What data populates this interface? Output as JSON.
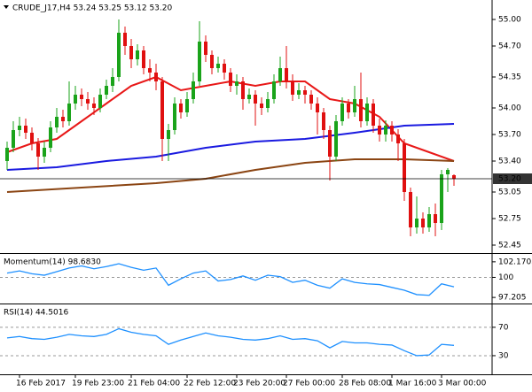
{
  "chart_data": [
    {
      "type": "candlestick",
      "title": "CRUDE_J17,H4  53.24 53.25 53.12 53.20",
      "up_color": "#1aa31a",
      "down_color": "#e01010",
      "open": [
        53.4,
        53.55,
        53.75,
        53.8,
        53.72,
        53.6,
        53.45,
        53.55,
        53.78,
        53.9,
        53.85,
        54.05,
        54.15,
        54.1,
        54.05,
        54.0,
        54.15,
        54.25,
        54.35,
        54.85,
        54.7,
        54.55,
        54.65,
        54.45,
        54.4,
        54.3,
        53.65,
        53.75,
        54.05,
        53.95,
        54.1,
        54.3,
        54.75,
        54.6,
        54.45,
        54.5,
        54.4,
        54.25,
        54.3,
        54.1,
        54.15,
        54.05,
        54.0,
        54.1,
        54.3,
        54.45,
        54.3,
        54.15,
        54.2,
        54.15,
        54.05,
        53.95,
        53.75,
        53.45,
        53.85,
        54.05,
        53.95,
        54.1,
        53.85,
        54.05,
        53.8,
        53.7,
        53.8,
        53.7,
        53.6,
        53.05,
        52.65,
        52.75,
        52.65,
        52.8,
        52.7,
        53.25,
        53.24
      ],
      "high": [
        53.62,
        53.85,
        53.9,
        53.88,
        53.78,
        53.66,
        53.62,
        53.85,
        54.0,
        53.98,
        54.3,
        54.25,
        54.22,
        54.18,
        54.12,
        54.22,
        54.32,
        54.45,
        55.0,
        54.92,
        54.78,
        54.72,
        54.7,
        54.55,
        54.5,
        54.35,
        53.82,
        54.12,
        54.1,
        54.18,
        54.4,
        54.98,
        54.82,
        54.65,
        54.58,
        54.55,
        54.45,
        54.38,
        54.35,
        54.22,
        54.2,
        54.12,
        54.18,
        54.38,
        54.58,
        54.7,
        54.38,
        54.28,
        54.25,
        54.2,
        54.12,
        54.0,
        53.8,
        53.92,
        54.12,
        54.1,
        54.25,
        54.4,
        54.12,
        54.1,
        53.88,
        53.86,
        53.85,
        53.76,
        53.65,
        53.1,
        53.0,
        52.82,
        52.88,
        52.92,
        53.3,
        53.32,
        53.25
      ],
      "low": [
        53.3,
        53.5,
        53.68,
        53.65,
        53.52,
        53.3,
        53.38,
        53.5,
        53.72,
        53.78,
        53.8,
        53.98,
        54.02,
        53.98,
        53.92,
        53.95,
        54.1,
        54.18,
        54.3,
        54.6,
        54.45,
        54.48,
        54.38,
        54.3,
        54.2,
        53.4,
        53.4,
        53.7,
        53.88,
        53.9,
        54.05,
        54.25,
        54.52,
        54.38,
        54.4,
        54.32,
        54.18,
        54.15,
        53.98,
        54.05,
        53.8,
        53.92,
        53.95,
        54.05,
        54.25,
        54.22,
        54.08,
        54.1,
        54.05,
        53.98,
        53.7,
        53.65,
        53.18,
        53.4,
        53.8,
        53.88,
        53.9,
        53.78,
        53.8,
        53.72,
        53.62,
        53.62,
        53.62,
        53.4,
        52.95,
        52.55,
        52.58,
        52.58,
        52.6,
        52.55,
        52.62,
        53.05,
        53.12
      ],
      "close": [
        53.55,
        53.75,
        53.8,
        53.72,
        53.6,
        53.45,
        53.55,
        53.78,
        53.9,
        53.85,
        54.05,
        54.15,
        54.1,
        54.05,
        54.0,
        54.15,
        54.25,
        54.35,
        54.85,
        54.7,
        54.55,
        54.65,
        54.45,
        54.4,
        54.3,
        53.65,
        53.75,
        54.05,
        53.95,
        54.1,
        54.3,
        54.75,
        54.6,
        54.45,
        54.5,
        54.4,
        54.25,
        54.3,
        54.1,
        54.15,
        54.05,
        54.0,
        54.1,
        54.3,
        54.45,
        54.3,
        54.15,
        54.2,
        54.15,
        54.05,
        53.95,
        53.75,
        53.45,
        53.85,
        54.05,
        53.95,
        54.1,
        53.85,
        54.05,
        53.8,
        53.7,
        53.8,
        53.7,
        53.6,
        53.05,
        52.65,
        52.75,
        52.65,
        52.8,
        52.7,
        53.25,
        53.3,
        53.2
      ],
      "overlays": [
        {
          "color": "#e81818",
          "x": [
            0,
            4,
            8,
            12,
            16,
            20,
            24,
            28,
            32,
            36,
            40,
            44,
            48,
            52,
            56,
            60,
            64,
            68,
            72
          ],
          "values": [
            53.5,
            53.6,
            53.65,
            53.85,
            54.05,
            54.25,
            54.35,
            54.2,
            54.25,
            54.3,
            54.25,
            54.3,
            54.3,
            54.1,
            54.05,
            53.9,
            53.6,
            53.5,
            53.4
          ]
        },
        {
          "color": "#1a1ae0",
          "x": [
            0,
            8,
            16,
            24,
            32,
            40,
            48,
            56,
            64,
            72
          ],
          "values": [
            53.3,
            53.33,
            53.4,
            53.45,
            53.55,
            53.62,
            53.65,
            53.72,
            53.8,
            53.82
          ]
        },
        {
          "color": "#8b4513",
          "x": [
            0,
            12,
            24,
            32,
            40,
            48,
            56,
            64,
            72
          ],
          "values": [
            53.05,
            53.1,
            53.15,
            53.2,
            53.3,
            53.38,
            53.42,
            53.42,
            53.4
          ]
        }
      ],
      "last_price": 53.2,
      "last_price_label": "53.20",
      "ylim": [
        52.37,
        55.17
      ],
      "yticks": [
        {
          "value": 55.0,
          "label": "55.00"
        },
        {
          "value": 54.7,
          "label": "54.70"
        },
        54.35,
        {
          "value": 54.0,
          "label": "54.00"
        },
        {
          "value": 53.7,
          "label": "53.70"
        },
        {
          "value": 53.4,
          "label": "53.40"
        },
        53.05,
        52.75,
        52.45
      ],
      "xticks": [
        {
          "value": 2,
          "label": "16 Feb 2017"
        },
        {
          "value": 11,
          "label": "19 Feb 23:00"
        },
        {
          "value": 20,
          "label": "21 Feb 04:00"
        },
        {
          "value": 29,
          "label": "22 Feb 12:00"
        },
        {
          "value": 37,
          "label": "23 Feb 20:00"
        },
        {
          "value": 45,
          "label": "27 Feb 00:00"
        },
        {
          "value": 54,
          "label": "28 Feb 08:00"
        },
        {
          "value": 62,
          "label": "1 Mar 16:00"
        },
        {
          "value": 70,
          "label": "3 Mar 00:00"
        }
      ]
    },
    {
      "type": "line",
      "title": "Momentum(14) 98.6830",
      "color": "#1e90ff",
      "x": [
        0,
        2,
        4,
        6,
        8,
        10,
        12,
        14,
        16,
        18,
        20,
        22,
        24,
        26,
        28,
        30,
        32,
        34,
        36,
        38,
        40,
        42,
        44,
        46,
        48,
        50,
        52,
        54,
        56,
        58,
        60,
        62,
        64,
        66,
        68,
        70,
        72
      ],
      "values": [
        100.6,
        100.9,
        100.5,
        100.3,
        100.8,
        101.3,
        101.6,
        101.2,
        101.5,
        101.9,
        101.4,
        101.0,
        101.3,
        98.9,
        99.8,
        100.6,
        100.9,
        99.5,
        99.7,
        100.2,
        99.6,
        100.3,
        100.1,
        99.3,
        99.6,
        98.9,
        98.5,
        99.8,
        99.3,
        99.1,
        99.0,
        98.6,
        98.2,
        97.6,
        97.5,
        99.1,
        98.683
      ],
      "levels": [
        100
      ],
      "ylim": [
        96.48,
        103.14
      ],
      "yticks": [
        102.1703,
        100,
        97.205
      ]
    },
    {
      "type": "line",
      "title": "RSI(14) 44.5016",
      "color": "#1e90ff",
      "x": [
        0,
        2,
        4,
        6,
        8,
        10,
        12,
        14,
        16,
        18,
        20,
        22,
        24,
        26,
        28,
        30,
        32,
        34,
        36,
        38,
        40,
        42,
        44,
        46,
        48,
        50,
        52,
        54,
        56,
        58,
        60,
        62,
        64,
        66,
        68,
        70,
        72
      ],
      "values": [
        55,
        57,
        54,
        53,
        56,
        60,
        58,
        57,
        60,
        68,
        63,
        60,
        58,
        46,
        52,
        57,
        62,
        58,
        56,
        53,
        52,
        54,
        58,
        53,
        54,
        51,
        41,
        50,
        48,
        48,
        46,
        45,
        37,
        30,
        31,
        46,
        44.5016
      ],
      "levels": [
        70,
        30
      ],
      "ylim": [
        5,
        101
      ],
      "yticks": [
        70,
        30
      ]
    }
  ]
}
